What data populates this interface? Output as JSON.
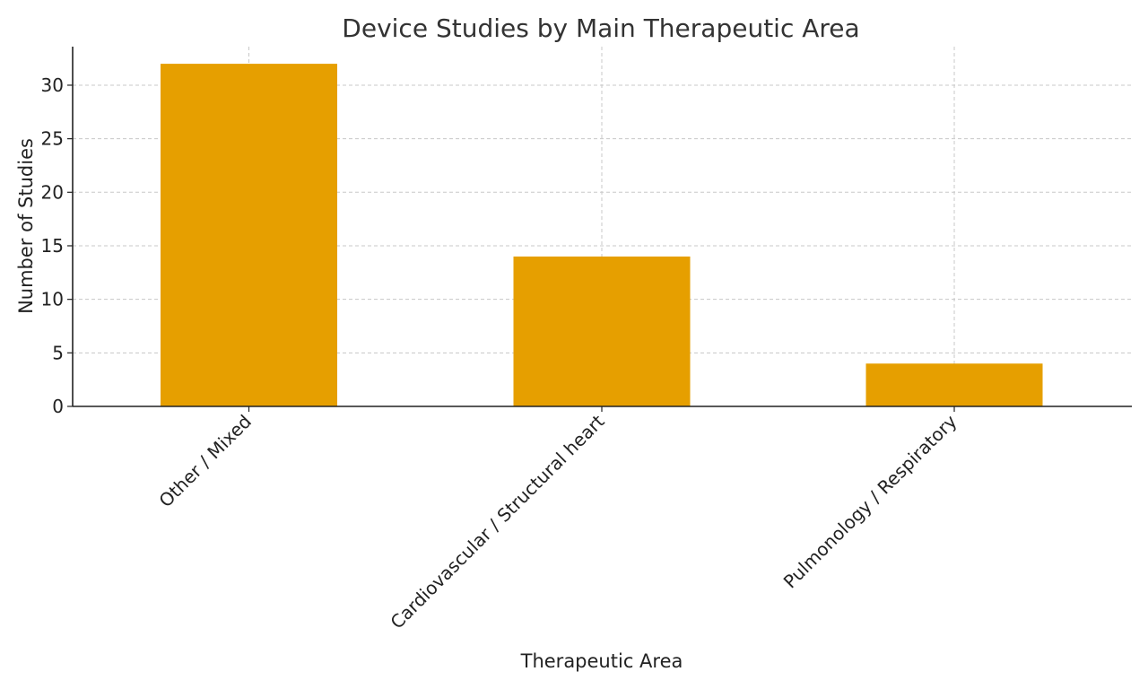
{
  "chart_data": {
    "type": "bar",
    "title": "Device Studies by Main Therapeutic Area",
    "xlabel": "Therapeutic Area",
    "ylabel": "Number of Studies",
    "categories": [
      "Other / Mixed",
      "Cardiovascular / Structural heart",
      "Pulmonology / Respiratory"
    ],
    "values": [
      32,
      14,
      4
    ],
    "ylim": [
      0,
      33.6
    ],
    "yticks": [
      0,
      5,
      10,
      15,
      20,
      25,
      30
    ],
    "grid": true,
    "bar_color": "#E69F00",
    "legend": "none"
  }
}
